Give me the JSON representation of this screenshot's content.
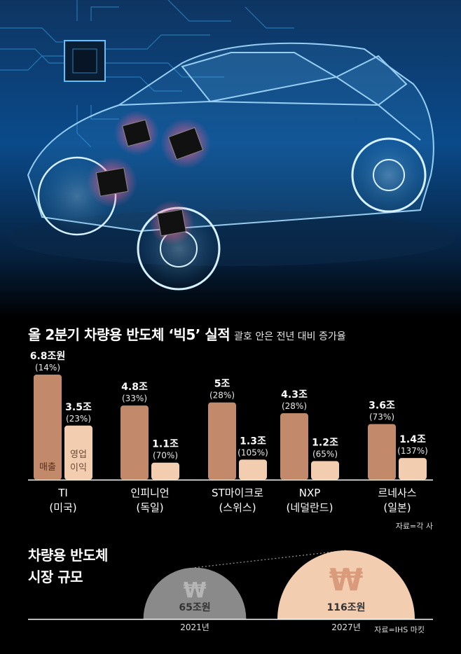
{
  "title": "올 2분기 차량용 반도체 ‘빅5’ 실적",
  "subtitle": "괄호 안은 전년 대비 증가율",
  "source1": "자료=각 사",
  "section2_title_line1": "차량용 반도체",
  "section2_title_line2": "시장 규모",
  "source2": "자료=IHS 마킷",
  "colors": {
    "sales": "#c28a6b",
    "profit": "#f2cdb0",
    "bg": "#000000",
    "market_2021": "#8a8a8a",
    "market_2027": "#f2cdb0"
  },
  "chart_data": [
    {
      "type": "bar",
      "categories": [
        "TI\n(미국)",
        "인피니언\n(독일)",
        "ST마이크로\n(스위스)",
        "NXP\n(네덜란드)",
        "르네사스\n(일본)"
      ],
      "series": [
        {
          "name": "매출",
          "values": [
            6.8,
            4.8,
            5,
            4.3,
            3.6
          ],
          "labels": [
            "6.8조원",
            "4.8조",
            "5조",
            "4.3조",
            "3.6조"
          ],
          "growth": [
            "(14%)",
            "(33%)",
            "(28%)",
            "(28%)",
            "(73%)"
          ]
        },
        {
          "name": "영업\n이익",
          "values": [
            3.5,
            1.1,
            1.3,
            1.2,
            1.4
          ],
          "labels": [
            "3.5조",
            "1.1조",
            "1.3조",
            "1.2조",
            "1.4조"
          ],
          "growth": [
            "(23%)",
            "(70%)",
            "(105%)",
            "(65%)",
            "(137%)"
          ]
        }
      ],
      "unit": "조원",
      "ylim": [
        0,
        6.8
      ]
    },
    {
      "type": "bar",
      "categories": [
        "2021년",
        "2027년"
      ],
      "values": [
        65,
        116
      ],
      "labels": [
        "65조원",
        "116조원"
      ],
      "symbol": "₩",
      "unit": "조원"
    }
  ]
}
